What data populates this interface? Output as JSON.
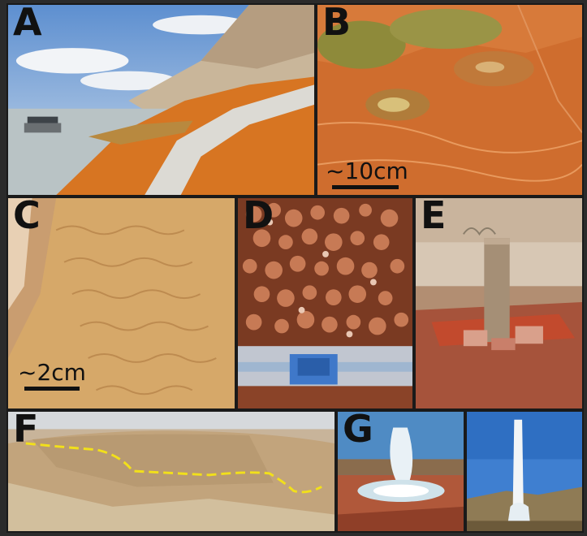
{
  "panels": {
    "a": {
      "label": "A"
    },
    "b": {
      "label": "B",
      "scale": "~10cm"
    },
    "c": {
      "label": "C",
      "scale": "~2cm"
    },
    "d": {
      "label": "D"
    },
    "e": {
      "label": "E"
    },
    "f": {
      "label": "F"
    },
    "g": {
      "label": "G"
    }
  },
  "colors": {
    "travertine_orange": "#c8641e",
    "sky_blue": "#7fa8d8",
    "dashed_line": "#f2e01a"
  }
}
